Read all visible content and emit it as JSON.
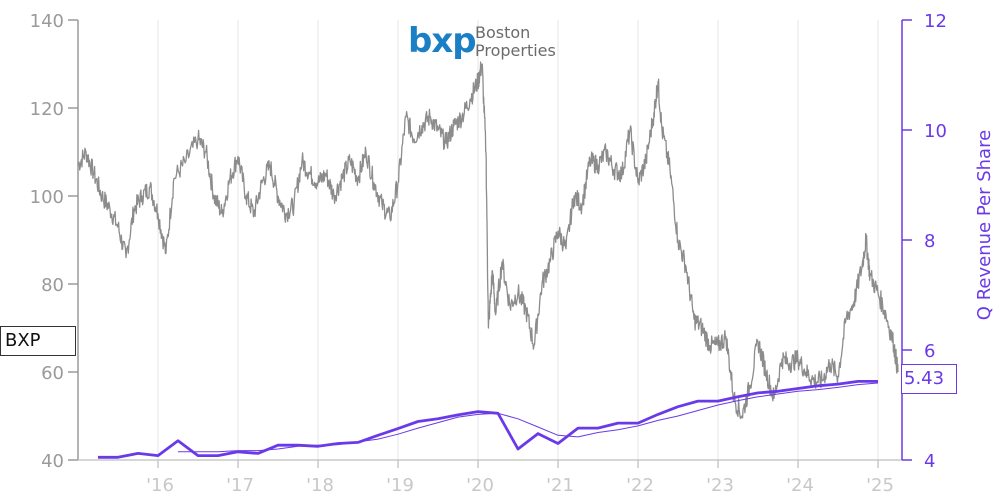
{
  "logo": {
    "mark": "bxp",
    "line1": "Boston",
    "line2": "Properties"
  },
  "ticker_label": "BXP",
  "last_revenue_label": "5.43",
  "colors": {
    "price": "#8c8c8c",
    "revenue": "#6b3ae8",
    "axis_left": "#9a9a9a",
    "axis_bottom": "#c8c8c8"
  },
  "chart_data": {
    "type": "line",
    "x_tick_labels": [
      "'16",
      "'17",
      "'18",
      "'19",
      "'20",
      "'21",
      "'22",
      "'23",
      "'24",
      "'25"
    ],
    "x_tick_years": [
      2016,
      2017,
      2018,
      2019,
      2020,
      2021,
      2022,
      2023,
      2024,
      2025
    ],
    "xlim": [
      2015.0,
      2025.3
    ],
    "y_left": {
      "ticks": [
        40,
        60,
        80,
        100,
        120,
        140
      ],
      "ylim": [
        40,
        140
      ]
    },
    "y_right": {
      "label": "Q Revenue Per Share",
      "ticks": [
        4,
        6,
        8,
        10,
        12
      ],
      "ylim": [
        4,
        12
      ]
    },
    "grid": true,
    "series": [
      {
        "axis": "left",
        "style": "price",
        "x": [
          2015.0,
          2015.1,
          2015.2,
          2015.3,
          2015.4,
          2015.5,
          2015.6,
          2015.7,
          2015.8,
          2015.9,
          2016.0,
          2016.1,
          2016.2,
          2016.35,
          2016.5,
          2016.6,
          2016.7,
          2016.8,
          2016.9,
          2017.0,
          2017.1,
          2017.2,
          2017.3,
          2017.4,
          2017.5,
          2017.6,
          2017.7,
          2017.8,
          2017.9,
          2018.0,
          2018.1,
          2018.2,
          2018.3,
          2018.4,
          2018.5,
          2018.6,
          2018.7,
          2018.8,
          2018.9,
          2019.0,
          2019.1,
          2019.2,
          2019.3,
          2019.4,
          2019.5,
          2019.6,
          2019.7,
          2019.8,
          2019.9,
          2020.0,
          2020.05,
          2020.1,
          2020.13,
          2020.18,
          2020.22,
          2020.3,
          2020.4,
          2020.5,
          2020.6,
          2020.7,
          2020.8,
          2020.9,
          2021.0,
          2021.1,
          2021.2,
          2021.3,
          2021.4,
          2021.5,
          2021.6,
          2021.7,
          2021.8,
          2021.9,
          2022.0,
          2022.1,
          2022.2,
          2022.25,
          2022.3,
          2022.4,
          2022.5,
          2022.6,
          2022.7,
          2022.8,
          2022.9,
          2023.0,
          2023.1,
          2023.2,
          2023.3,
          2023.4,
          2023.5,
          2023.6,
          2023.7,
          2023.8,
          2023.9,
          2024.0,
          2024.1,
          2024.2,
          2024.3,
          2024.4,
          2024.5,
          2024.6,
          2024.7,
          2024.8,
          2024.85,
          2024.9,
          2025.0,
          2025.1,
          2025.2,
          2025.25
        ],
        "values": [
          107,
          110,
          105,
          100,
          97,
          93,
          86,
          97,
          100,
          102,
          96,
          87,
          104,
          108,
          113,
          110,
          100,
          96,
          104,
          109,
          100,
          96,
          103,
          107,
          100,
          96,
          98,
          108,
          105,
          103,
          105,
          100,
          104,
          108,
          104,
          110,
          103,
          98,
          95,
          103,
          118,
          113,
          116,
          118,
          115,
          112,
          116,
          118,
          122,
          126,
          130,
          110,
          70,
          83,
          73,
          85,
          75,
          78,
          74,
          66,
          80,
          85,
          92,
          88,
          100,
          98,
          108,
          107,
          110,
          106,
          105,
          115,
          103,
          108,
          119,
          126,
          115,
          106,
          90,
          84,
          72,
          70,
          66,
          66,
          68,
          54,
          50,
          57,
          67,
          60,
          54,
          63,
          62,
          63,
          60,
          58,
          58,
          62,
          59,
          72,
          76,
          84,
          90,
          82,
          78,
          73,
          66,
          60
        ]
      },
      {
        "axis": "right",
        "style": "revenue",
        "x": [
          2015.25,
          2015.5,
          2015.75,
          2016.0,
          2016.25,
          2016.5,
          2016.75,
          2017.0,
          2017.25,
          2017.5,
          2017.75,
          2018.0,
          2018.25,
          2018.5,
          2018.75,
          2019.0,
          2019.25,
          2019.5,
          2019.75,
          2020.0,
          2020.25,
          2020.5,
          2020.75,
          2021.0,
          2021.25,
          2021.5,
          2021.75,
          2022.0,
          2022.25,
          2022.5,
          2022.75,
          2023.0,
          2023.25,
          2023.5,
          2023.75,
          2024.0,
          2024.25,
          2024.5,
          2024.75,
          2025.0
        ],
        "values": [
          4.05,
          4.05,
          4.12,
          4.08,
          4.35,
          4.08,
          4.08,
          4.15,
          4.12,
          4.27,
          4.27,
          4.25,
          4.3,
          4.32,
          4.45,
          4.57,
          4.7,
          4.75,
          4.82,
          4.88,
          4.85,
          4.2,
          4.48,
          4.3,
          4.58,
          4.58,
          4.67,
          4.67,
          4.83,
          4.97,
          5.07,
          5.07,
          5.15,
          5.22,
          5.25,
          5.3,
          5.35,
          5.38,
          5.43,
          5.43
        ]
      },
      {
        "axis": "right",
        "style": "revenue_avg",
        "x": [
          2016.25,
          2016.5,
          2016.75,
          2017.0,
          2017.25,
          2017.5,
          2017.75,
          2018.0,
          2018.25,
          2018.5,
          2018.75,
          2019.0,
          2019.25,
          2019.5,
          2019.75,
          2020.0,
          2020.25,
          2020.5,
          2020.75,
          2021.0,
          2021.25,
          2021.5,
          2021.75,
          2022.0,
          2022.25,
          2022.5,
          2022.75,
          2023.0,
          2023.25,
          2023.5,
          2023.75,
          2024.0,
          2024.25,
          2024.5,
          2024.75,
          2025.0
        ],
        "values": [
          4.15,
          4.15,
          4.15,
          4.17,
          4.17,
          4.2,
          4.25,
          4.27,
          4.28,
          4.33,
          4.38,
          4.47,
          4.58,
          4.68,
          4.78,
          4.83,
          4.85,
          4.75,
          4.6,
          4.45,
          4.42,
          4.5,
          4.55,
          4.62,
          4.72,
          4.8,
          4.9,
          5.0,
          5.08,
          5.15,
          5.2,
          5.25,
          5.28,
          5.32,
          5.37,
          5.4
        ]
      }
    ]
  }
}
